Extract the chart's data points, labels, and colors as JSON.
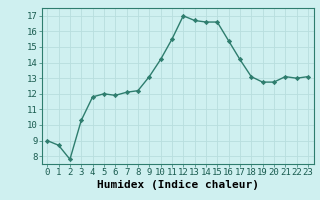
{
  "x": [
    0,
    1,
    2,
    3,
    4,
    5,
    6,
    7,
    8,
    9,
    10,
    11,
    12,
    13,
    14,
    15,
    16,
    17,
    18,
    19,
    20,
    21,
    22,
    23
  ],
  "y": [
    9.0,
    8.7,
    7.8,
    10.3,
    11.8,
    12.0,
    11.9,
    12.1,
    12.2,
    13.1,
    14.2,
    15.5,
    17.0,
    16.7,
    16.6,
    16.6,
    15.4,
    14.2,
    13.1,
    12.75,
    12.75,
    13.1,
    13.0,
    13.1
  ],
  "xlabel": "Humidex (Indice chaleur)",
  "ylim": [
    7.5,
    17.5
  ],
  "xlim": [
    -0.5,
    23.5
  ],
  "yticks": [
    8,
    9,
    10,
    11,
    12,
    13,
    14,
    15,
    16,
    17
  ],
  "xticks": [
    0,
    1,
    2,
    3,
    4,
    5,
    6,
    7,
    8,
    9,
    10,
    11,
    12,
    13,
    14,
    15,
    16,
    17,
    18,
    19,
    20,
    21,
    22,
    23
  ],
  "line_color": "#2e7d6e",
  "bg_color": "#cff0f0",
  "grid_color": "#b8dede",
  "tick_label_fontsize": 6.5,
  "xlabel_fontsize": 8,
  "marker_size": 2.2,
  "linewidth": 1.0
}
